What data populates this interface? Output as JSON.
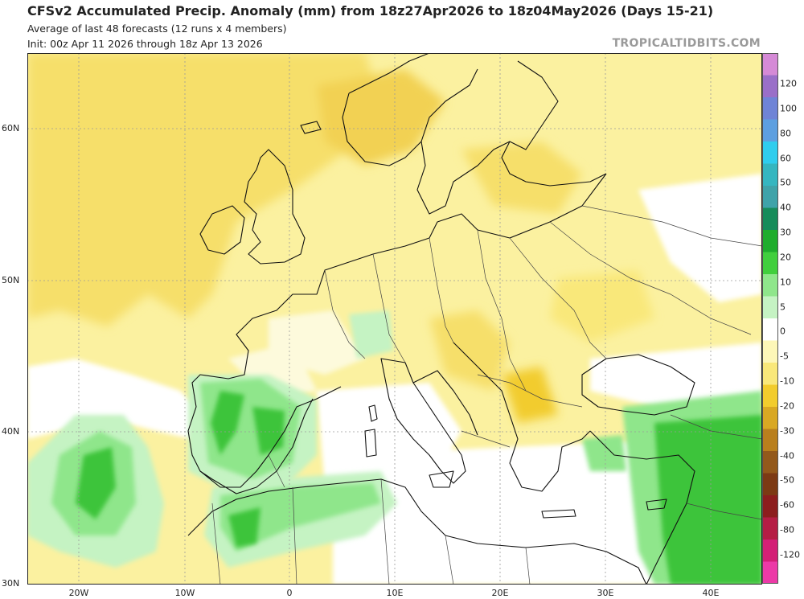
{
  "header": {
    "title": "CFSv2 Accumulated Precip. Anomaly (mm) from 18z27Apr2026 to 18z04May2026 (Days 15-21)",
    "subtitle1": "Average of last 48 forecasts (12 runs x 4 members)",
    "subtitle2": "Init: 00z Apr 11 2026 through 18z Apr 13 2026",
    "brand": "TROPICALTIDBITS.COM"
  },
  "axes": {
    "lat_labels": [
      "60N",
      "50N",
      "40N",
      "30N"
    ],
    "lon_labels": [
      "20W",
      "10W",
      "0",
      "10E",
      "20E",
      "30E",
      "40E"
    ]
  },
  "colorbar": {
    "labels": [
      "120",
      "100",
      "80",
      "60",
      "50",
      "40",
      "30",
      "20",
      "10",
      "5",
      "0",
      "-5",
      "-10",
      "-20",
      "-30",
      "-40",
      "-50",
      "-60",
      "-80",
      "-120"
    ],
    "colors": [
      "#d58ad6",
      "#9a6fc8",
      "#6f84d6",
      "#5d9fe0",
      "#2fcdee",
      "#35b6c0",
      "#3fa3a9",
      "#178c5a",
      "#1fad2c",
      "#41cf3d",
      "#8fe68b",
      "#c5f3c3",
      "#ffffff",
      "#fdf7b8",
      "#f9e87a",
      "#f2cc2d",
      "#d9a823",
      "#b97f1d",
      "#93591b",
      "#7c3a14",
      "#8c1e1e",
      "#b51e45",
      "#d31f76",
      "#ec3aa7"
    ]
  },
  "map": {
    "colors": {
      "ocean_dry": "#fbf1a0",
      "ocean_dry_strong": "#f6df6a",
      "pale": "#fdfadc",
      "neutral": "#ffffff",
      "wet_light": "#c5f3c3",
      "wet_mid": "#8fe68b",
      "wet_strong": "#3ec43a",
      "coast": "#111111",
      "border": "#444444",
      "grid": "#9a9a9a"
    }
  }
}
